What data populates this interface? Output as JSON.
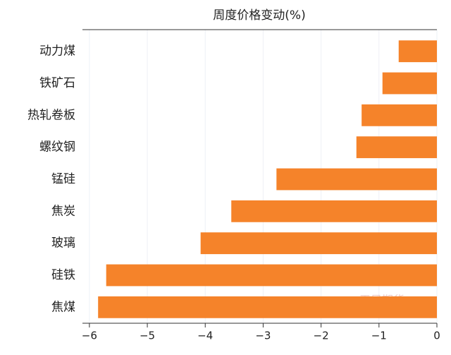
{
  "chart_data": {
    "type": "hbar",
    "title": "周度价格变动(%)",
    "categories": [
      "动力煤",
      "铁矿石",
      "热轧卷板",
      "螺纹钢",
      "锰硅",
      "焦炭",
      "玻璃",
      "硅铁",
      "焦煤"
    ],
    "values": [
      -0.66,
      -0.94,
      -1.3,
      -1.39,
      -2.77,
      -3.55,
      -4.08,
      -5.71,
      -5.85
    ],
    "color": "#f5832a",
    "xlim": [
      -6.12,
      0
    ],
    "xticks": [
      {
        "value": -6,
        "label": "−6"
      },
      {
        "value": -5,
        "label": "−5"
      },
      {
        "value": -4,
        "label": "−4"
      },
      {
        "value": -3,
        "label": "−3"
      },
      {
        "value": -2,
        "label": "−2"
      },
      {
        "value": -1,
        "label": "−1"
      },
      0
    ],
    "grid": true,
    "watermark": "天風期货"
  }
}
